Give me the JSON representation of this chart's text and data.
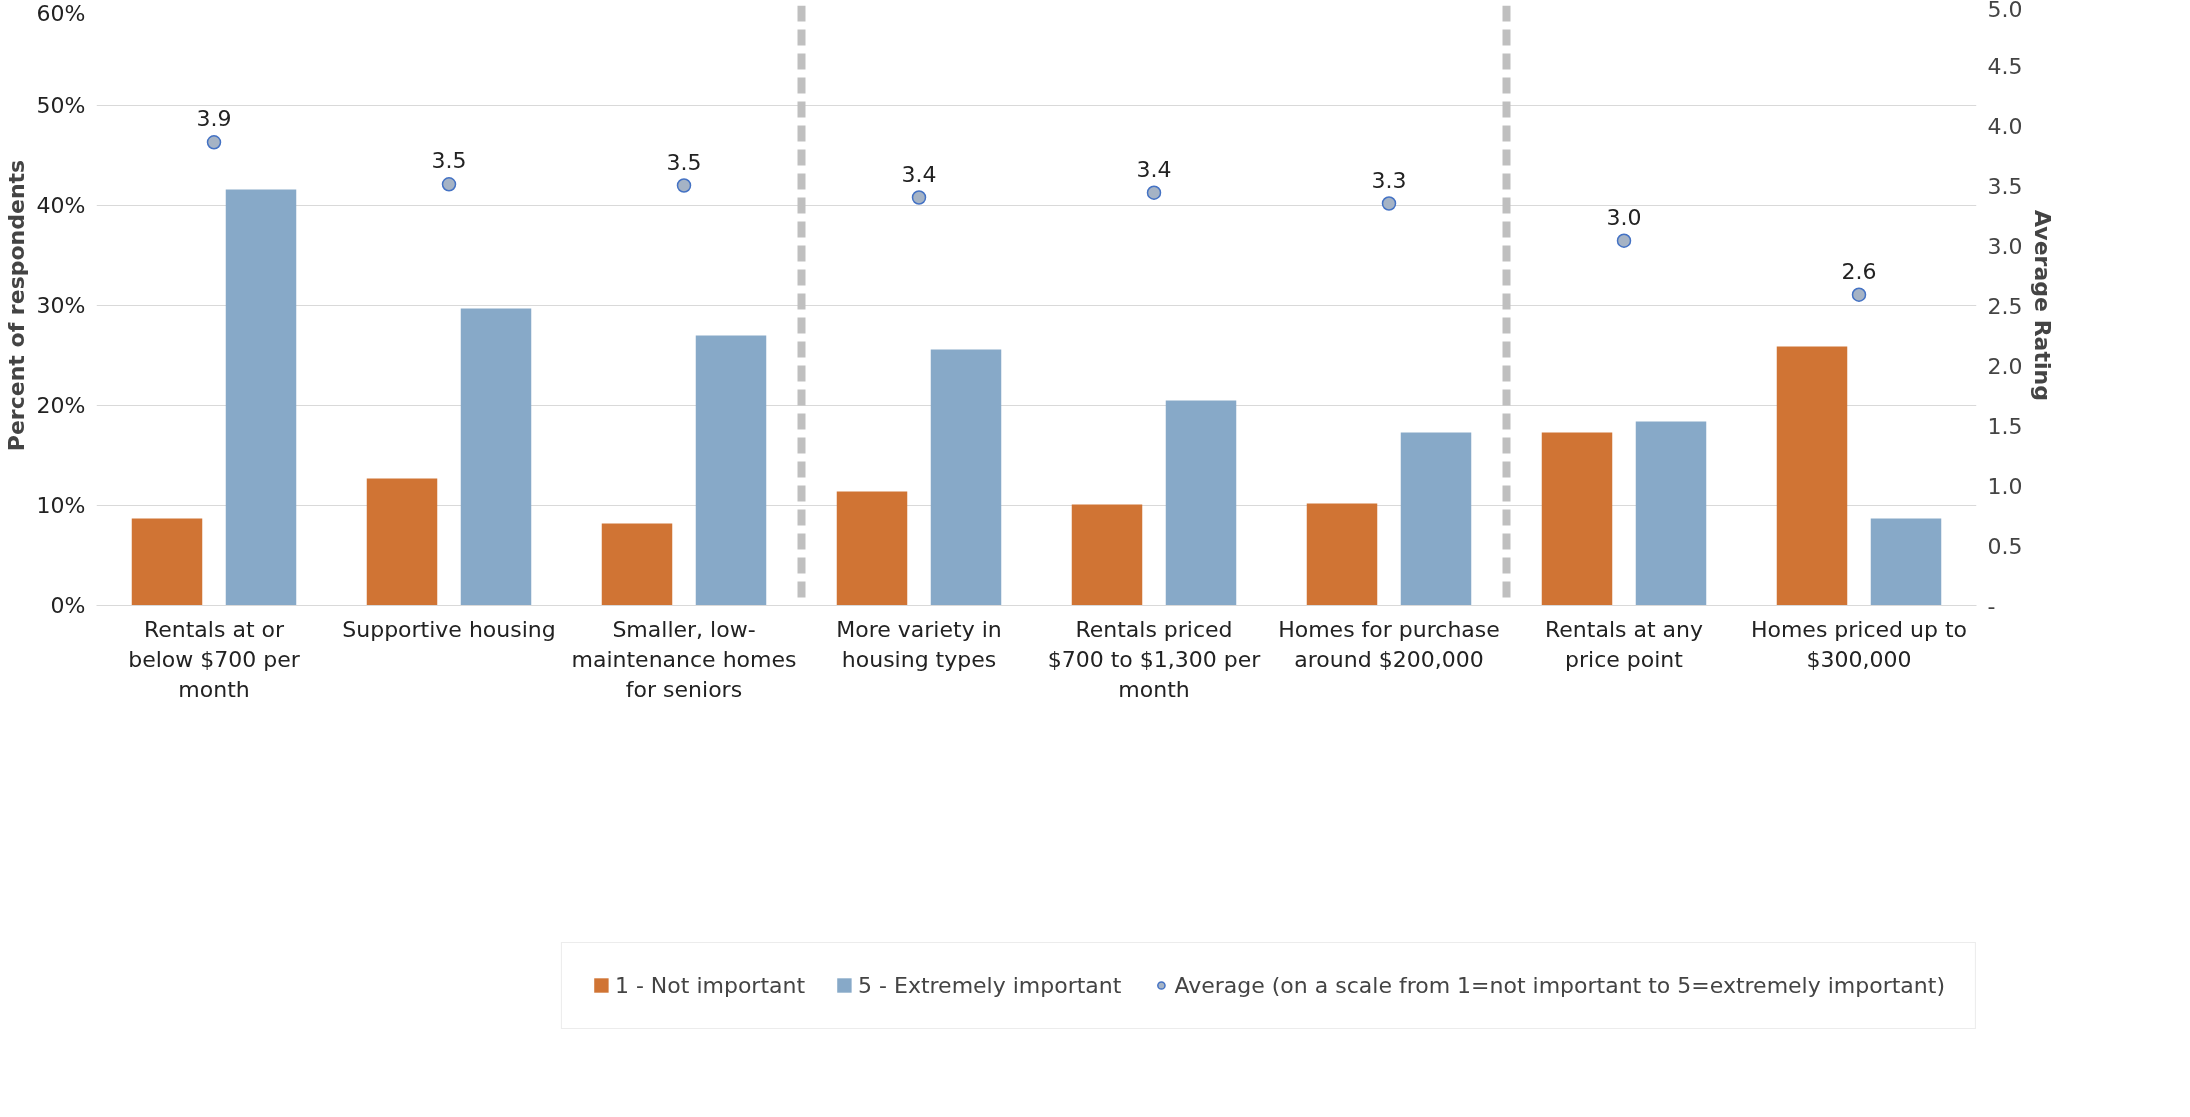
{
  "chart_data": {
    "type": "bar",
    "categories": [
      "Rentals at or below $700 per month",
      "Supportive housing",
      "Smaller, low-maintenance homes for seniors",
      "More variety in housing types",
      "Rentals priced $700 to $1,300 per month",
      "Homes for purchase around $200,000",
      "Rentals at any price point",
      "Homes priced up to $300,000"
    ],
    "series": [
      {
        "name": "1 - Not important",
        "color": "#d07434",
        "values": [
          8.7,
          12.7,
          8.2,
          11.4,
          10.1,
          10.2,
          17.3,
          25.9
        ]
      },
      {
        "name": "5 - Extremely important",
        "color": "#87a9c8",
        "values": [
          41.6,
          29.7,
          27.0,
          25.6,
          20.5,
          17.3,
          18.4,
          8.7
        ]
      },
      {
        "name": "Average (on a scale from 1=not important to 5=extremely important)",
        "type": "scatter",
        "axis": "y2",
        "color": "#a5b3c5",
        "values": [
          3.86,
          3.51,
          3.5,
          3.4,
          3.44,
          3.35,
          3.04,
          2.59
        ],
        "value_labels": [
          "3.9",
          "3.5",
          "3.5",
          "3.4",
          "3.4",
          "3.3",
          "3.0",
          "2.6"
        ]
      }
    ],
    "ylabel": "Percent of respondents",
    "y2label": "Average Rating",
    "ylim": [
      0,
      60
    ],
    "yticks": [
      {
        "value": 0,
        "label": "0%"
      },
      {
        "value": 10,
        "label": "10%"
      },
      {
        "value": 20,
        "label": "20%"
      },
      {
        "value": 30,
        "label": "30%"
      },
      {
        "value": 40,
        "label": "40%"
      },
      {
        "value": 50,
        "label": "50%"
      },
      {
        "value": 60,
        "label": "60%"
      }
    ],
    "y2lim": [
      0,
      5
    ],
    "y2ticks": [
      {
        "value": 0,
        "label": "-"
      },
      {
        "value": 0.5,
        "label": "0.5"
      },
      {
        "value": 1,
        "label": "1.0"
      },
      {
        "value": 1.5,
        "label": "1.5"
      },
      {
        "value": 2,
        "label": "2.0"
      },
      {
        "value": 2.5,
        "label": "2.5"
      },
      {
        "value": 3,
        "label": "3.0"
      },
      {
        "value": 3.5,
        "label": "3.5"
      },
      {
        "value": 4,
        "label": "4.0"
      },
      {
        "value": 4.5,
        "label": "4.5"
      },
      {
        "value": 5,
        "label": "5.0"
      }
    ],
    "grid": "y",
    "legend": "bottom",
    "marker": "circle"
  }
}
